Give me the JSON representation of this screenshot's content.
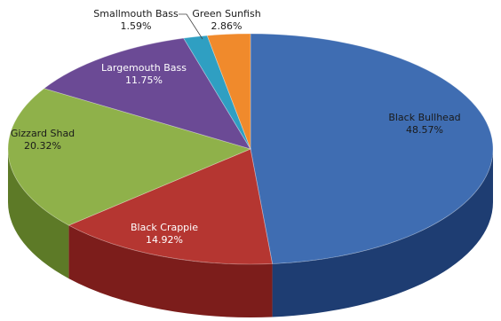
{
  "chart_data": {
    "type": "pie",
    "title": "",
    "slices": [
      {
        "label": "Black Bullhead",
        "value": 48.57,
        "value_label": "48.57%",
        "color": "#3f6db2",
        "side_color": "#1e3d72",
        "text_dark": true
      },
      {
        "label": "Black Crappie",
        "value": 14.92,
        "value_label": "14.92%",
        "color": "#b53631",
        "side_color": "#7c1d1b",
        "text_dark": false
      },
      {
        "label": "Gizzard Shad",
        "value": 20.32,
        "value_label": "20.32%",
        "color": "#8fb14a",
        "side_color": "#5d7a27",
        "text_dark": true
      },
      {
        "label": "Largemouth Bass",
        "value": 11.75,
        "value_label": "11.75%",
        "color": "#6b4a95",
        "side_color": "#432c63",
        "text_dark": false
      },
      {
        "label": "Smallmouth Bass",
        "value": 1.59,
        "value_label": "1.59%",
        "color": "#2f9fc2",
        "side_color": "#1d6a82",
        "text_dark": true
      },
      {
        "label": "Green Sunfish",
        "value": 2.86,
        "value_label": "2.86%",
        "color": "#f08a2c",
        "side_color": "#a85a14",
        "text_dark": true
      }
    ],
    "style": "3d",
    "legend": "none",
    "data_labels": "category-and-percent"
  }
}
